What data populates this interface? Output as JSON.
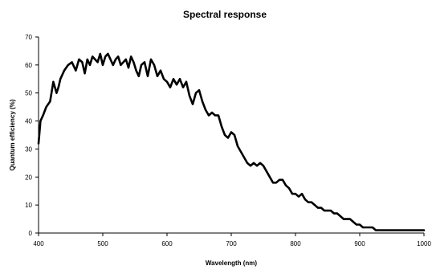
{
  "chart_data": {
    "type": "line",
    "title": "Spectral response",
    "xlabel": "Wavelength (nm)",
    "ylabel": "Quantum efficiency (%)",
    "xlim": [
      400,
      1000
    ],
    "ylim": [
      0,
      70
    ],
    "xticks": [
      400,
      500,
      600,
      700,
      800,
      900,
      1000
    ],
    "yticks": [
      0,
      10,
      20,
      30,
      40,
      50,
      60,
      70
    ],
    "grid": false,
    "line_color": "#000000",
    "series": [
      {
        "x": [
          400,
          403,
          407,
          412,
          418,
          423,
          428,
          431,
          434,
          440,
          446,
          452,
          458,
          463,
          468,
          472,
          476,
          480,
          484,
          488,
          492,
          496,
          500,
          504,
          508,
          512,
          516,
          520,
          524,
          528,
          532,
          536,
          540,
          544,
          548,
          552,
          556,
          560,
          565,
          570,
          575,
          580,
          585,
          590,
          595,
          600,
          605,
          610,
          615,
          620,
          625,
          630,
          635,
          640,
          645,
          650,
          655,
          660,
          665,
          670,
          675,
          680,
          685,
          690,
          695,
          700,
          705,
          710,
          715,
          720,
          725,
          730,
          735,
          740,
          745,
          750,
          755,
          760,
          765,
          770,
          775,
          780,
          785,
          790,
          795,
          800,
          805,
          810,
          815,
          820,
          825,
          830,
          835,
          840,
          845,
          850,
          855,
          860,
          865,
          870,
          875,
          880,
          885,
          890,
          895,
          900,
          905,
          910,
          915,
          920,
          925,
          930,
          935,
          940,
          945,
          950,
          955,
          960,
          965,
          970,
          975,
          980,
          985,
          990,
          995,
          1000
        ],
        "y": [
          32,
          40,
          42,
          45,
          47,
          54,
          50,
          52,
          55,
          58,
          60,
          61,
          58,
          62,
          61,
          57,
          62,
          60,
          63,
          62,
          61,
          64,
          60,
          63,
          64,
          62,
          60,
          62,
          63,
          60,
          61,
          62,
          59,
          63,
          61,
          58,
          56,
          60,
          61,
          56,
          62,
          60,
          56,
          58,
          55,
          54,
          52,
          55,
          53,
          55,
          52,
          54,
          49,
          46,
          50,
          51,
          47,
          44,
          42,
          43,
          42,
          42,
          38,
          35,
          34,
          36,
          35,
          31,
          29,
          27,
          25,
          24,
          25,
          24,
          25,
          24,
          22,
          20,
          18,
          18,
          19,
          19,
          17,
          16,
          14,
          14,
          13,
          14,
          12,
          11,
          11,
          10,
          9,
          9,
          8,
          8,
          8,
          7,
          7,
          6,
          5,
          5,
          5,
          4,
          3,
          3,
          2,
          2,
          2,
          2,
          1,
          1,
          1,
          1,
          1,
          1,
          1,
          1,
          1,
          1,
          1,
          1,
          1,
          1,
          1,
          1
        ]
      }
    ]
  }
}
